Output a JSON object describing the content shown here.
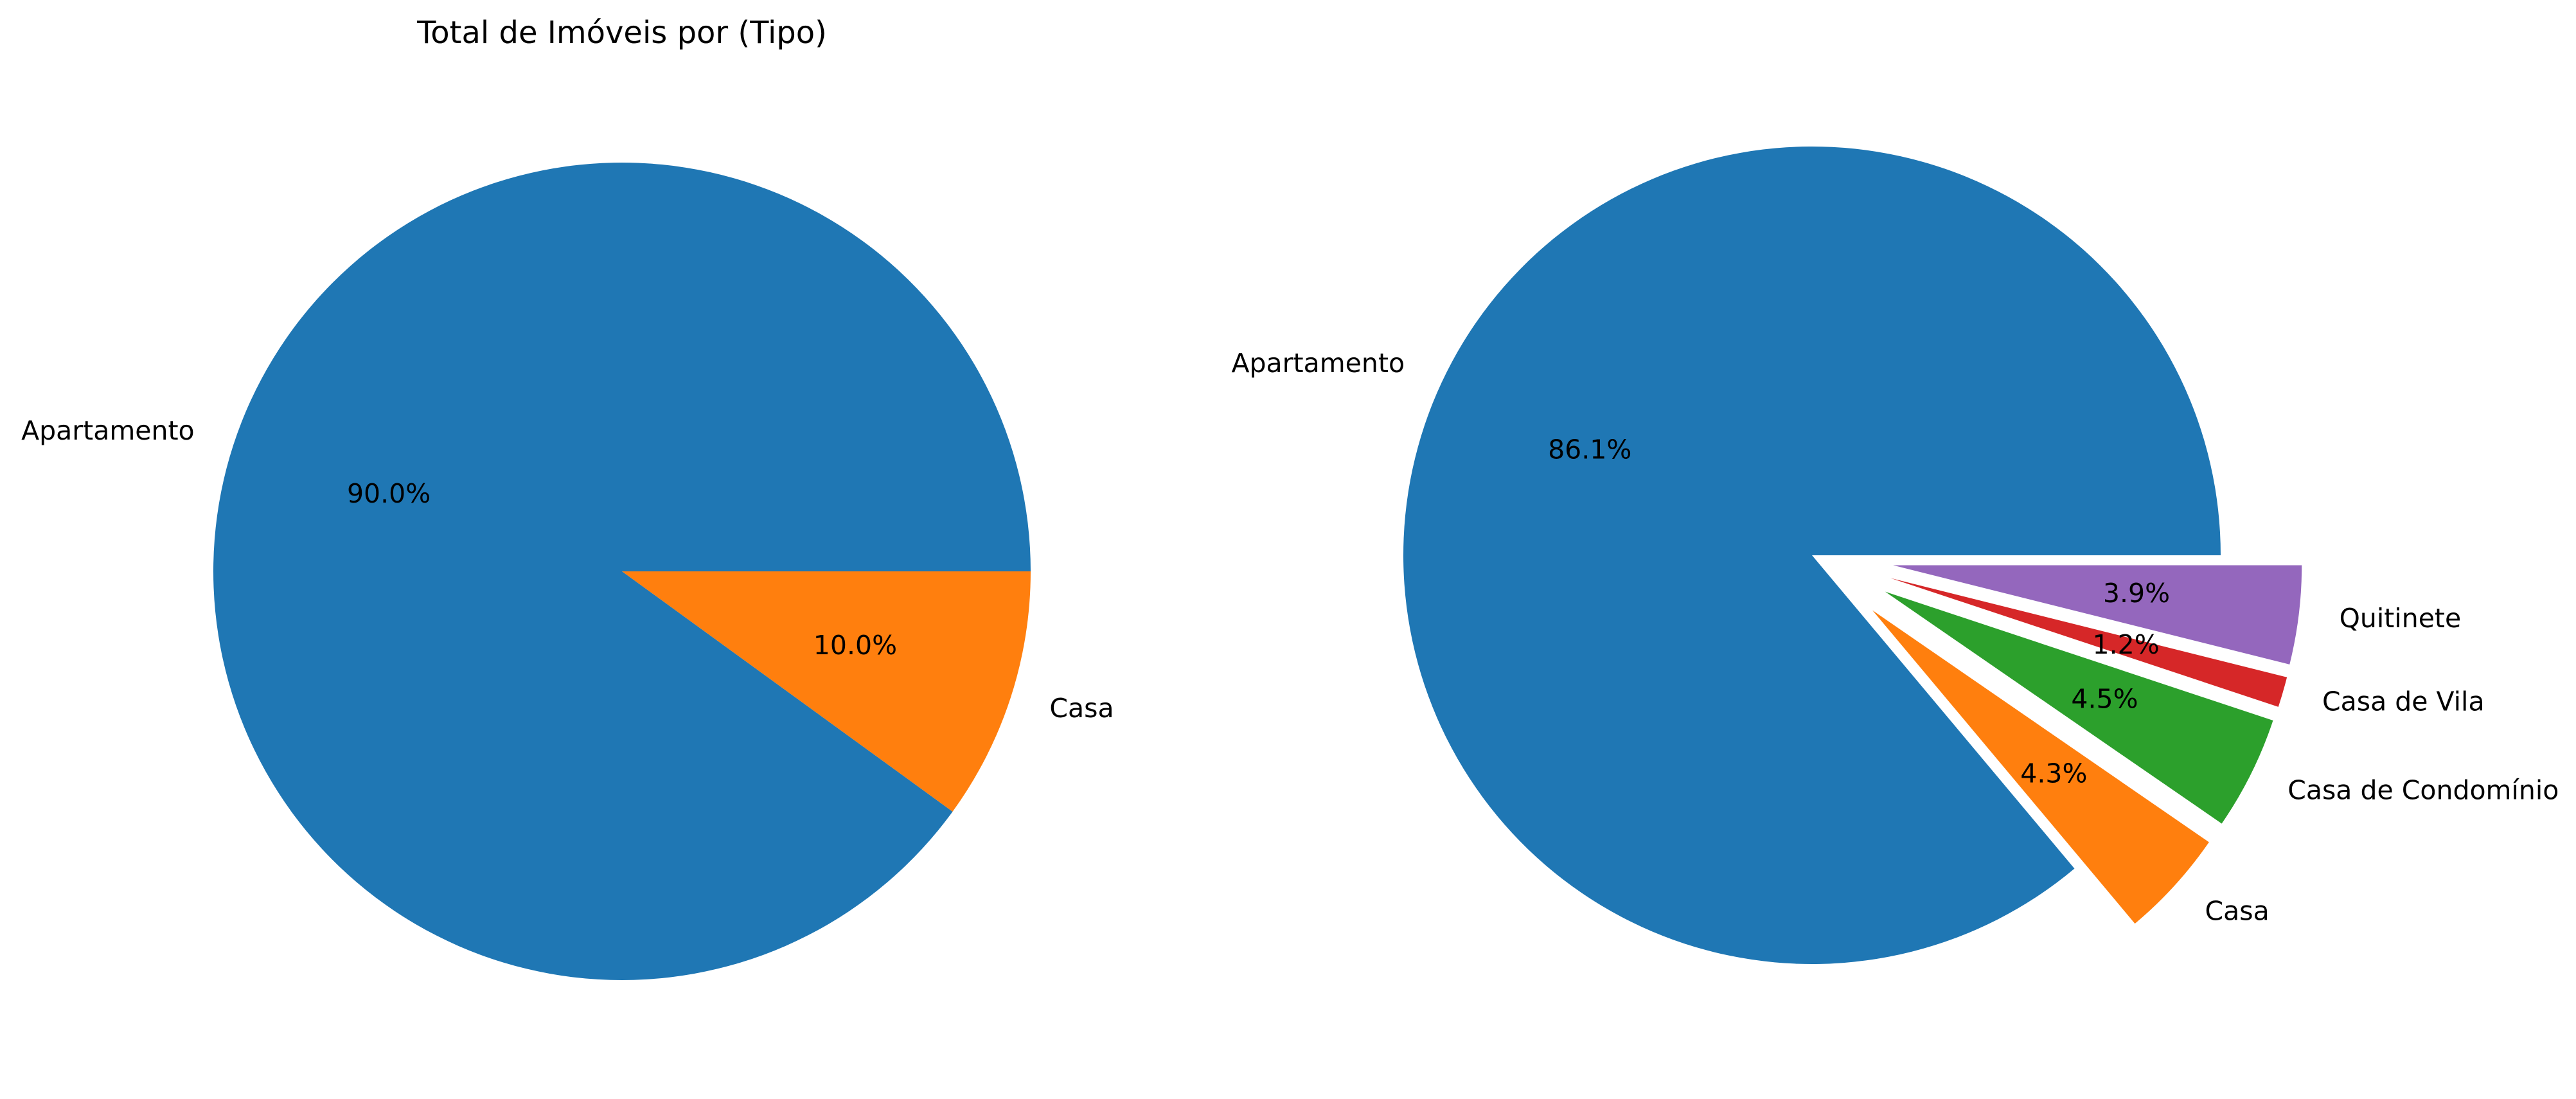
{
  "chart_data": [
    {
      "type": "pie",
      "title": "Total de Imóveis por (Tipo)",
      "categories": [
        "Apartamento",
        "Casa"
      ],
      "values": [
        90.0,
        10.0
      ],
      "percent_labels": [
        "90.0%",
        "10.0%"
      ],
      "colors": [
        "#1f77b4",
        "#ff7f0e"
      ],
      "explode": [
        0,
        0
      ],
      "start_angle_deg": 0,
      "direction": "counterclockwise"
    },
    {
      "type": "pie",
      "title": "",
      "categories": [
        "Apartamento",
        "Casa",
        "Casa de Condomínio",
        "Casa de Vila",
        "Quitinete"
      ],
      "values": [
        86.1,
        4.3,
        4.5,
        1.2,
        3.9
      ],
      "percent_labels": [
        "86.1%",
        "4.3%",
        "4.5%",
        "1.2%",
        "3.9%"
      ],
      "colors": [
        "#1f77b4",
        "#ff7f0e",
        "#2ca02c",
        "#d62728",
        "#9467bd"
      ],
      "explode": [
        0,
        0.2,
        0.2,
        0.2,
        0.2
      ],
      "start_angle_deg": 0,
      "direction": "counterclockwise"
    }
  ]
}
